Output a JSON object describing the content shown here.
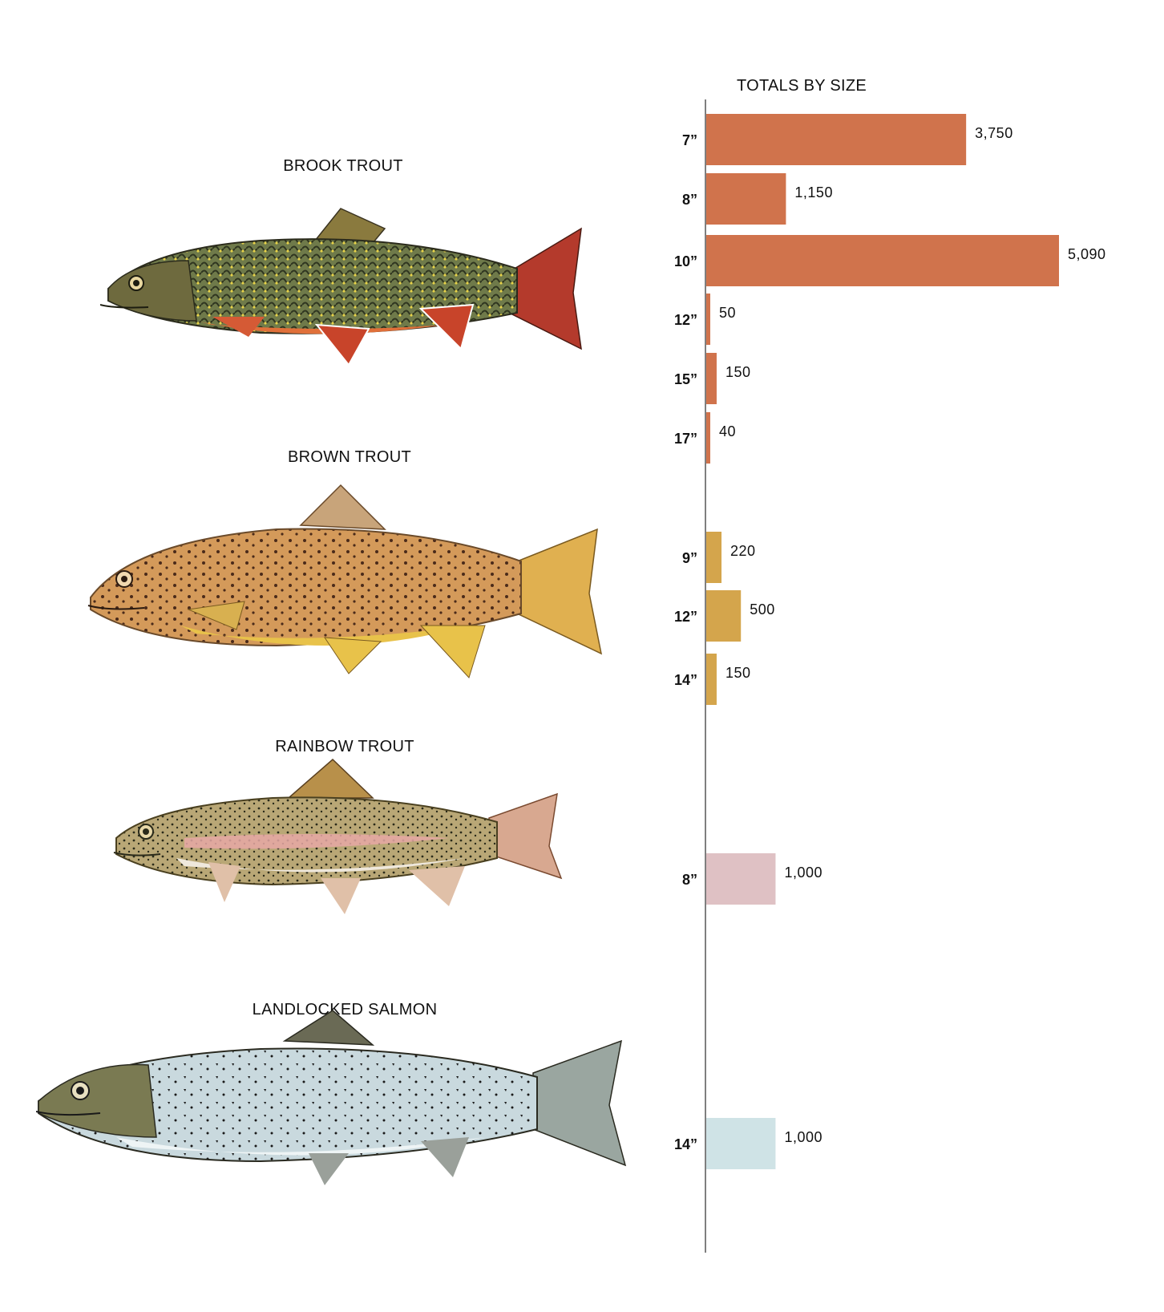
{
  "species": [
    {
      "name": "BROOK TROUT"
    },
    {
      "name": "BROWN TROUT"
    },
    {
      "name": "RAINBOW TROUT"
    },
    {
      "name": "LANDLOCKED SALMON"
    }
  ],
  "chart_data": {
    "type": "bar",
    "orientation": "horizontal",
    "title": "TOTALS BY SIZE",
    "xlabel": "",
    "ylabel": "",
    "xlim": [
      0,
      5090
    ],
    "grid": false,
    "colors": {
      "BROOK TROUT": "#d0734c",
      "BROWN TROUT": "#d4a54c",
      "RAINBOW TROUT": "#dfc1c4",
      "LANDLOCKED SALMON": "#cfe3e6"
    },
    "groups": [
      {
        "species": "BROOK TROUT",
        "bars": [
          {
            "size": "7”",
            "value": 3750,
            "label": "3,750"
          },
          {
            "size": "8”",
            "value": 1150,
            "label": "1,150"
          },
          {
            "size": "10”",
            "value": 5090,
            "label": "5,090"
          },
          {
            "size": "12”",
            "value": 50,
            "label": "50"
          },
          {
            "size": "15”",
            "value": 150,
            "label": "150"
          },
          {
            "size": "17”",
            "value": 40,
            "label": "40"
          }
        ]
      },
      {
        "species": "BROWN TROUT",
        "bars": [
          {
            "size": "9”",
            "value": 220,
            "label": "220"
          },
          {
            "size": "12”",
            "value": 500,
            "label": "500"
          },
          {
            "size": "14”",
            "value": 150,
            "label": "150"
          }
        ]
      },
      {
        "species": "RAINBOW TROUT",
        "bars": [
          {
            "size": "8”",
            "value": 1000,
            "label": "1,000"
          }
        ]
      },
      {
        "species": "LANDLOCKED SALMON",
        "bars": [
          {
            "size": "14”",
            "value": 1000,
            "label": "1,000"
          }
        ]
      }
    ]
  }
}
